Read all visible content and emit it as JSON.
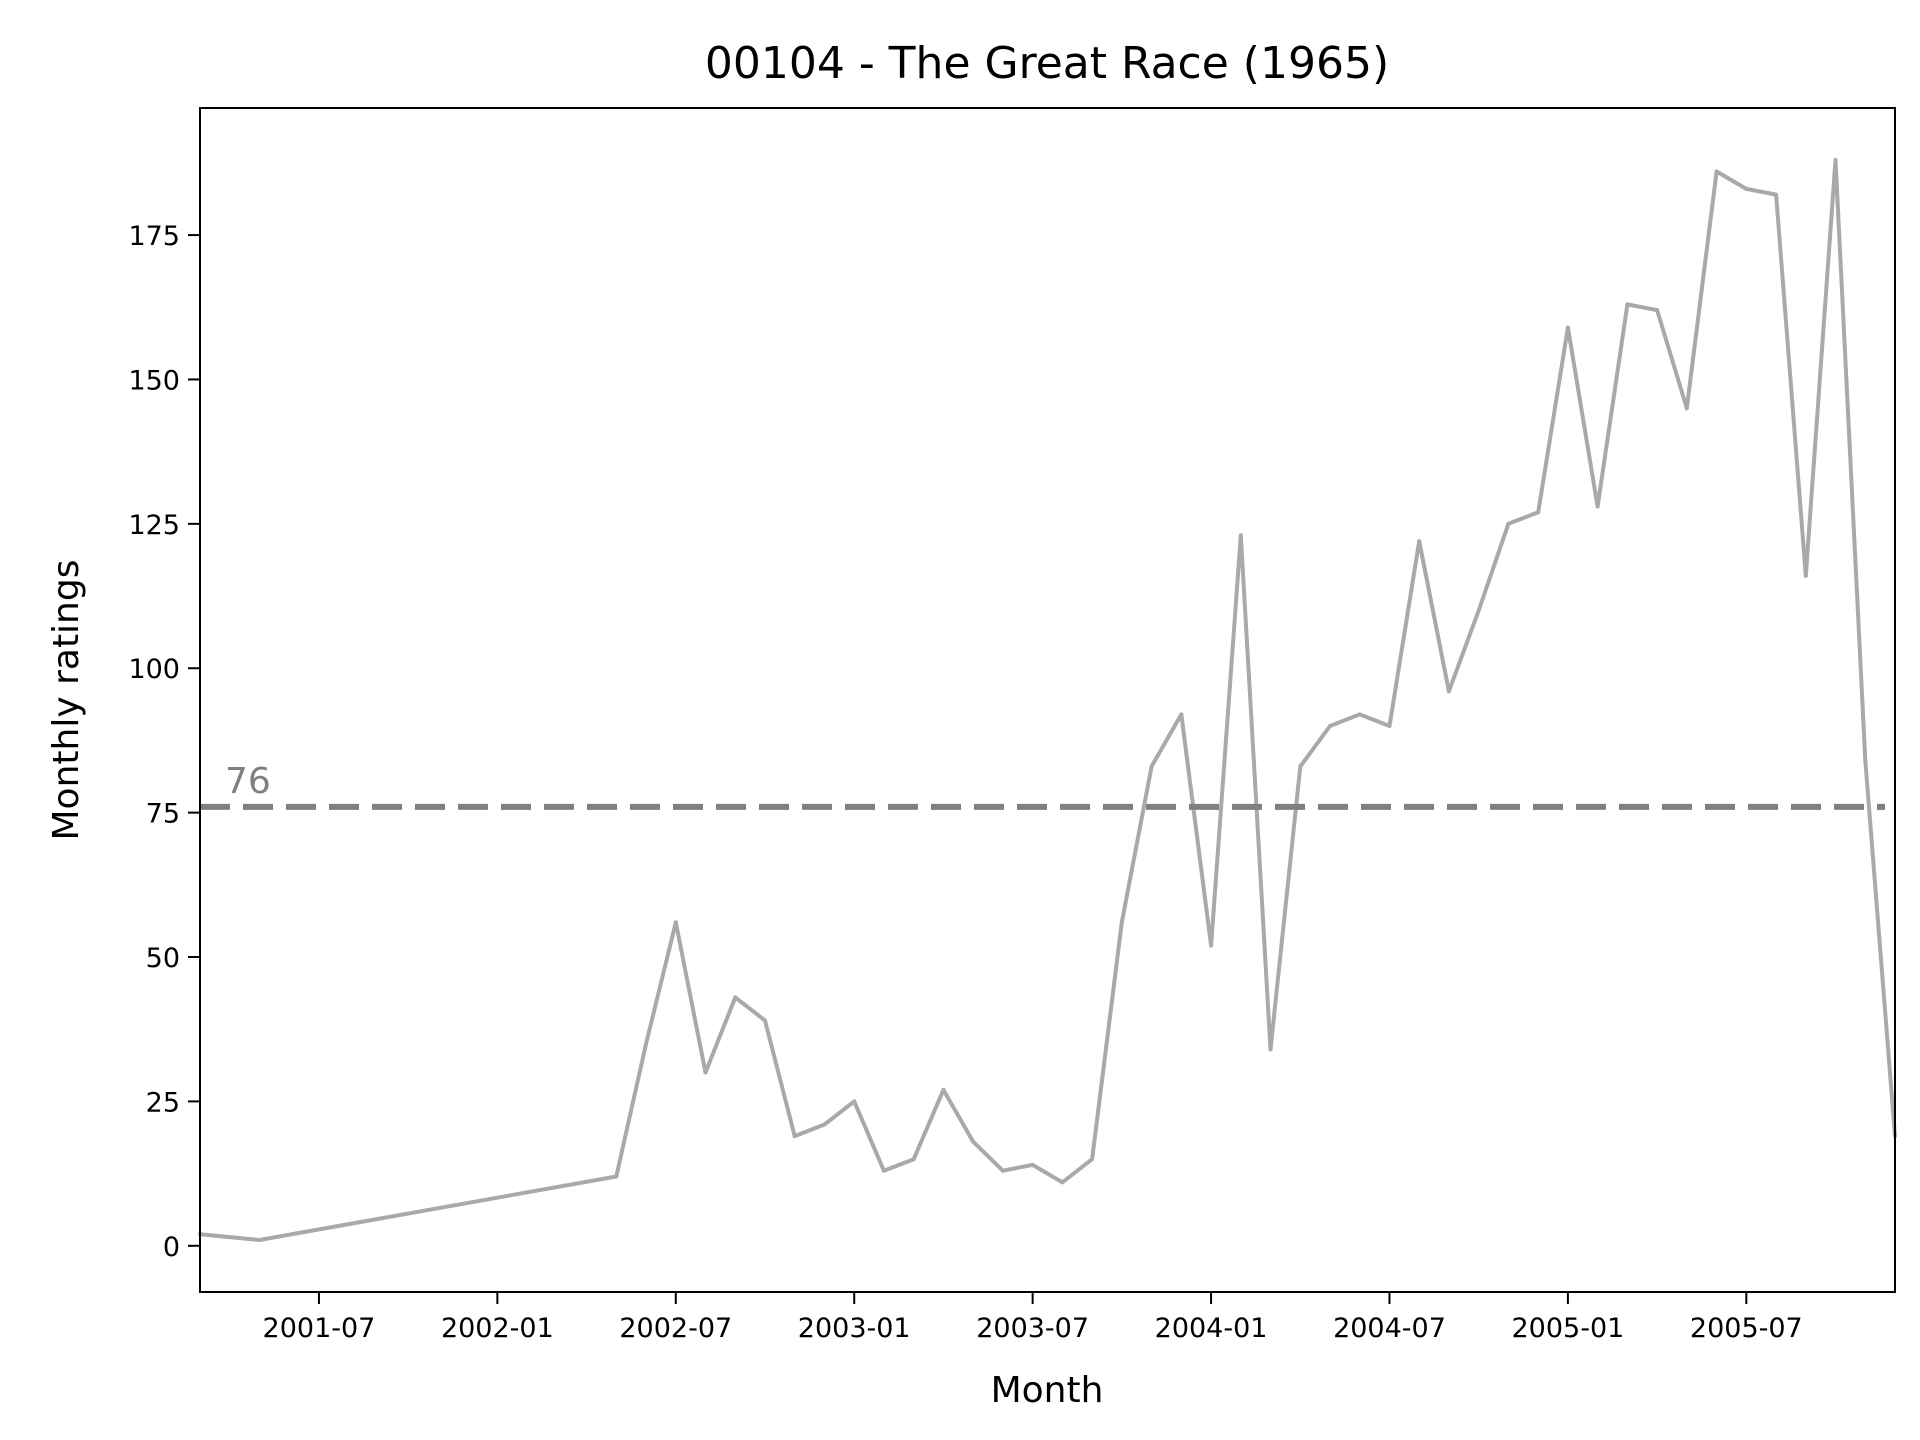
{
  "chart_data": {
    "type": "line",
    "title": "00104 - The Great Race (1965)",
    "xlabel": "Month",
    "ylabel": "Monthly ratings",
    "xlim": [
      "2001-03",
      "2005-12"
    ],
    "ylim": [
      -8,
      197
    ],
    "x_ticks": [
      "2001-07",
      "2002-01",
      "2002-07",
      "2003-01",
      "2003-07",
      "2004-01",
      "2004-07",
      "2005-01",
      "2005-07"
    ],
    "y_ticks": [
      0,
      25,
      50,
      75,
      100,
      125,
      150,
      175
    ],
    "grid": false,
    "series_color": "#a9a9a9",
    "reference_line": {
      "value": 76,
      "label": "76",
      "color": "#808080",
      "style": "dashed"
    },
    "series": [
      {
        "x": [
          "2001-03",
          "2001-05",
          "2002-05",
          "2002-06",
          "2002-07",
          "2002-08",
          "2002-09",
          "2002-10",
          "2002-11",
          "2002-12",
          "2003-01",
          "2003-02",
          "2003-03",
          "2003-04",
          "2003-05",
          "2003-06",
          "2003-07",
          "2003-08",
          "2003-09",
          "2003-10",
          "2003-11",
          "2003-12",
          "2004-01",
          "2004-02",
          "2004-03",
          "2004-04",
          "2004-05",
          "2004-06",
          "2004-07",
          "2004-08",
          "2004-09",
          "2004-10",
          "2004-11",
          "2004-12",
          "2005-01",
          "2005-02",
          "2005-03",
          "2005-04",
          "2005-05",
          "2005-06",
          "2005-07",
          "2005-08",
          "2005-09",
          "2005-10",
          "2005-11",
          "2005-12"
        ],
        "values": [
          2,
          1,
          12,
          35,
          56,
          30,
          43,
          39,
          19,
          21,
          25,
          13,
          15,
          27,
          18,
          13,
          14,
          11,
          15,
          56,
          83,
          92,
          52,
          123,
          34,
          83,
          90,
          92,
          90,
          122,
          96,
          110,
          125,
          127,
          159,
          128,
          163,
          162,
          145,
          186,
          183,
          182,
          116,
          188,
          84,
          19
        ]
      }
    ]
  }
}
